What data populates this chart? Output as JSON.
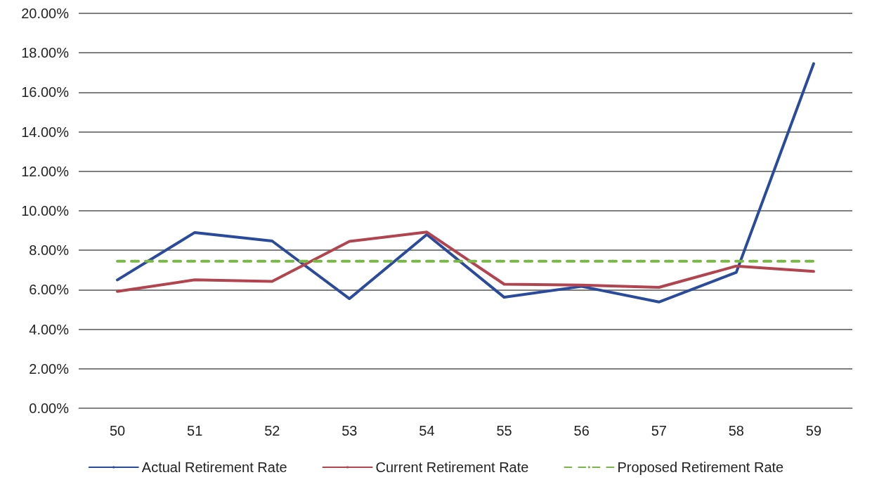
{
  "chart_data": {
    "type": "line",
    "categories": [
      "50",
      "51",
      "52",
      "53",
      "54",
      "55",
      "56",
      "57",
      "58",
      "59"
    ],
    "series": [
      {
        "name": "Actual Retirement Rate",
        "color": "#2a4a9c",
        "values": [
          6.5,
          8.9,
          8.47,
          5.55,
          8.8,
          5.62,
          6.17,
          5.38,
          6.88,
          17.45
        ]
      },
      {
        "name": "Current Retirement Rate",
        "color": "#b2444f",
        "values": [
          5.92,
          6.5,
          6.42,
          8.45,
          8.92,
          6.28,
          6.24,
          6.12,
          7.2,
          6.93
        ]
      },
      {
        "name": "Proposed Retirement Rate",
        "color": "#7ab648",
        "line_style": "dashed",
        "values": [
          7.45,
          7.45,
          7.45,
          7.45,
          7.45,
          7.45,
          7.45,
          7.45,
          7.45,
          7.45
        ]
      }
    ],
    "ylim": [
      0,
      20
    ],
    "yticks": [
      {
        "value": 0,
        "label": "0.00%"
      },
      {
        "value": 2,
        "label": "2.00%"
      },
      {
        "value": 4,
        "label": "4.00%"
      },
      {
        "value": 6,
        "label": "6.00%"
      },
      {
        "value": 8,
        "label": "8.00%"
      },
      {
        "value": 10,
        "label": "10.00%"
      },
      {
        "value": 12,
        "label": "12.00%"
      },
      {
        "value": 14,
        "label": "14.00%"
      },
      {
        "value": 16,
        "label": "16.00%"
      },
      {
        "value": 18,
        "label": "18.00%"
      },
      {
        "value": 20,
        "label": "20.00%"
      }
    ],
    "grid": "y",
    "legend": "bottom",
    "marker": "none",
    "line_style": "solid"
  }
}
